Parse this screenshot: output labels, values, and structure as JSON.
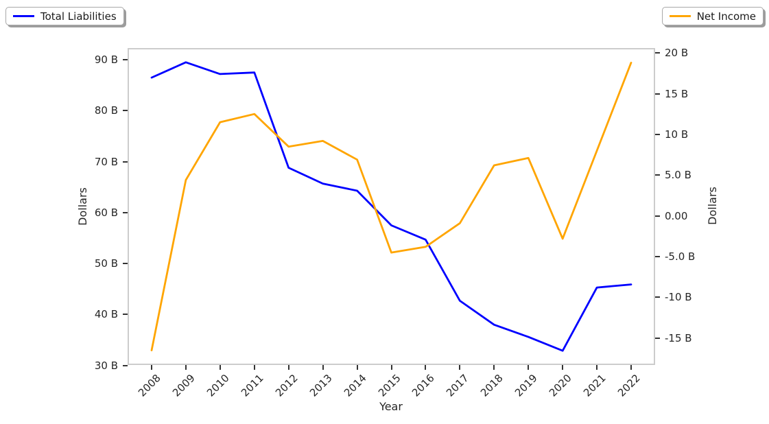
{
  "legend_left": {
    "label": "Total Liabilities"
  },
  "legend_right": {
    "label": "Net Income"
  },
  "chart_data": {
    "type": "line",
    "xlabel": "Year",
    "ylabel_left": "Dollars",
    "ylabel_right": "Dollars",
    "x": [
      2008,
      2009,
      2010,
      2011,
      2012,
      2013,
      2014,
      2015,
      2016,
      2017,
      2018,
      2019,
      2020,
      2021,
      2022
    ],
    "x_tick_labels": [
      "2008",
      "2009",
      "2010",
      "2011",
      "2012",
      "2013",
      "2014",
      "2015",
      "2016",
      "2017",
      "2018",
      "2019",
      "2020",
      "2021",
      "2022"
    ],
    "xlim": [
      2007.3,
      2022.7
    ],
    "grid": false,
    "series": [
      {
        "name": "Total Liabilities",
        "axis": "left",
        "color": "#0000ff",
        "values": [
          86.5,
          89.5,
          87.2,
          87.5,
          68.8,
          65.7,
          64.3,
          57.5,
          54.7,
          42.7,
          38.0,
          35.6,
          32.9,
          45.3,
          45.9
        ],
        "unit": "B"
      },
      {
        "name": "Net Income",
        "axis": "right",
        "color": "#ffa500",
        "values": [
          -16.5,
          4.4,
          11.5,
          12.5,
          8.5,
          9.2,
          6.9,
          -4.5,
          -3.8,
          -0.9,
          6.2,
          7.1,
          -2.8,
          8.0,
          18.8
        ],
        "unit": "B"
      }
    ],
    "left_axis": {
      "label": "Dollars",
      "tick_values": [
        90,
        80,
        70,
        60,
        50,
        40,
        30
      ],
      "tick_labels": [
        "90 B",
        "80 B",
        "70 B",
        "60 B",
        "50 B",
        "40 B",
        "30 B"
      ],
      "lim": [
        30.1,
        92.3
      ]
    },
    "right_axis": {
      "label": "Dollars",
      "tick_values": [
        20,
        15,
        10,
        5,
        0,
        -5,
        -10,
        -15
      ],
      "tick_labels": [
        "20 B",
        "15 B",
        "10 B",
        "5.0 B",
        "0.00",
        "-5.0 B",
        "-10 B",
        "-15 B"
      ],
      "lim": [
        -18.3,
        20.6
      ]
    },
    "colors": {
      "total_liabilities_line": "#0000ff",
      "net_income_line": "#ffa500",
      "spine": "#cccccc",
      "tick_mark": "#333333",
      "text": "#262626"
    }
  }
}
